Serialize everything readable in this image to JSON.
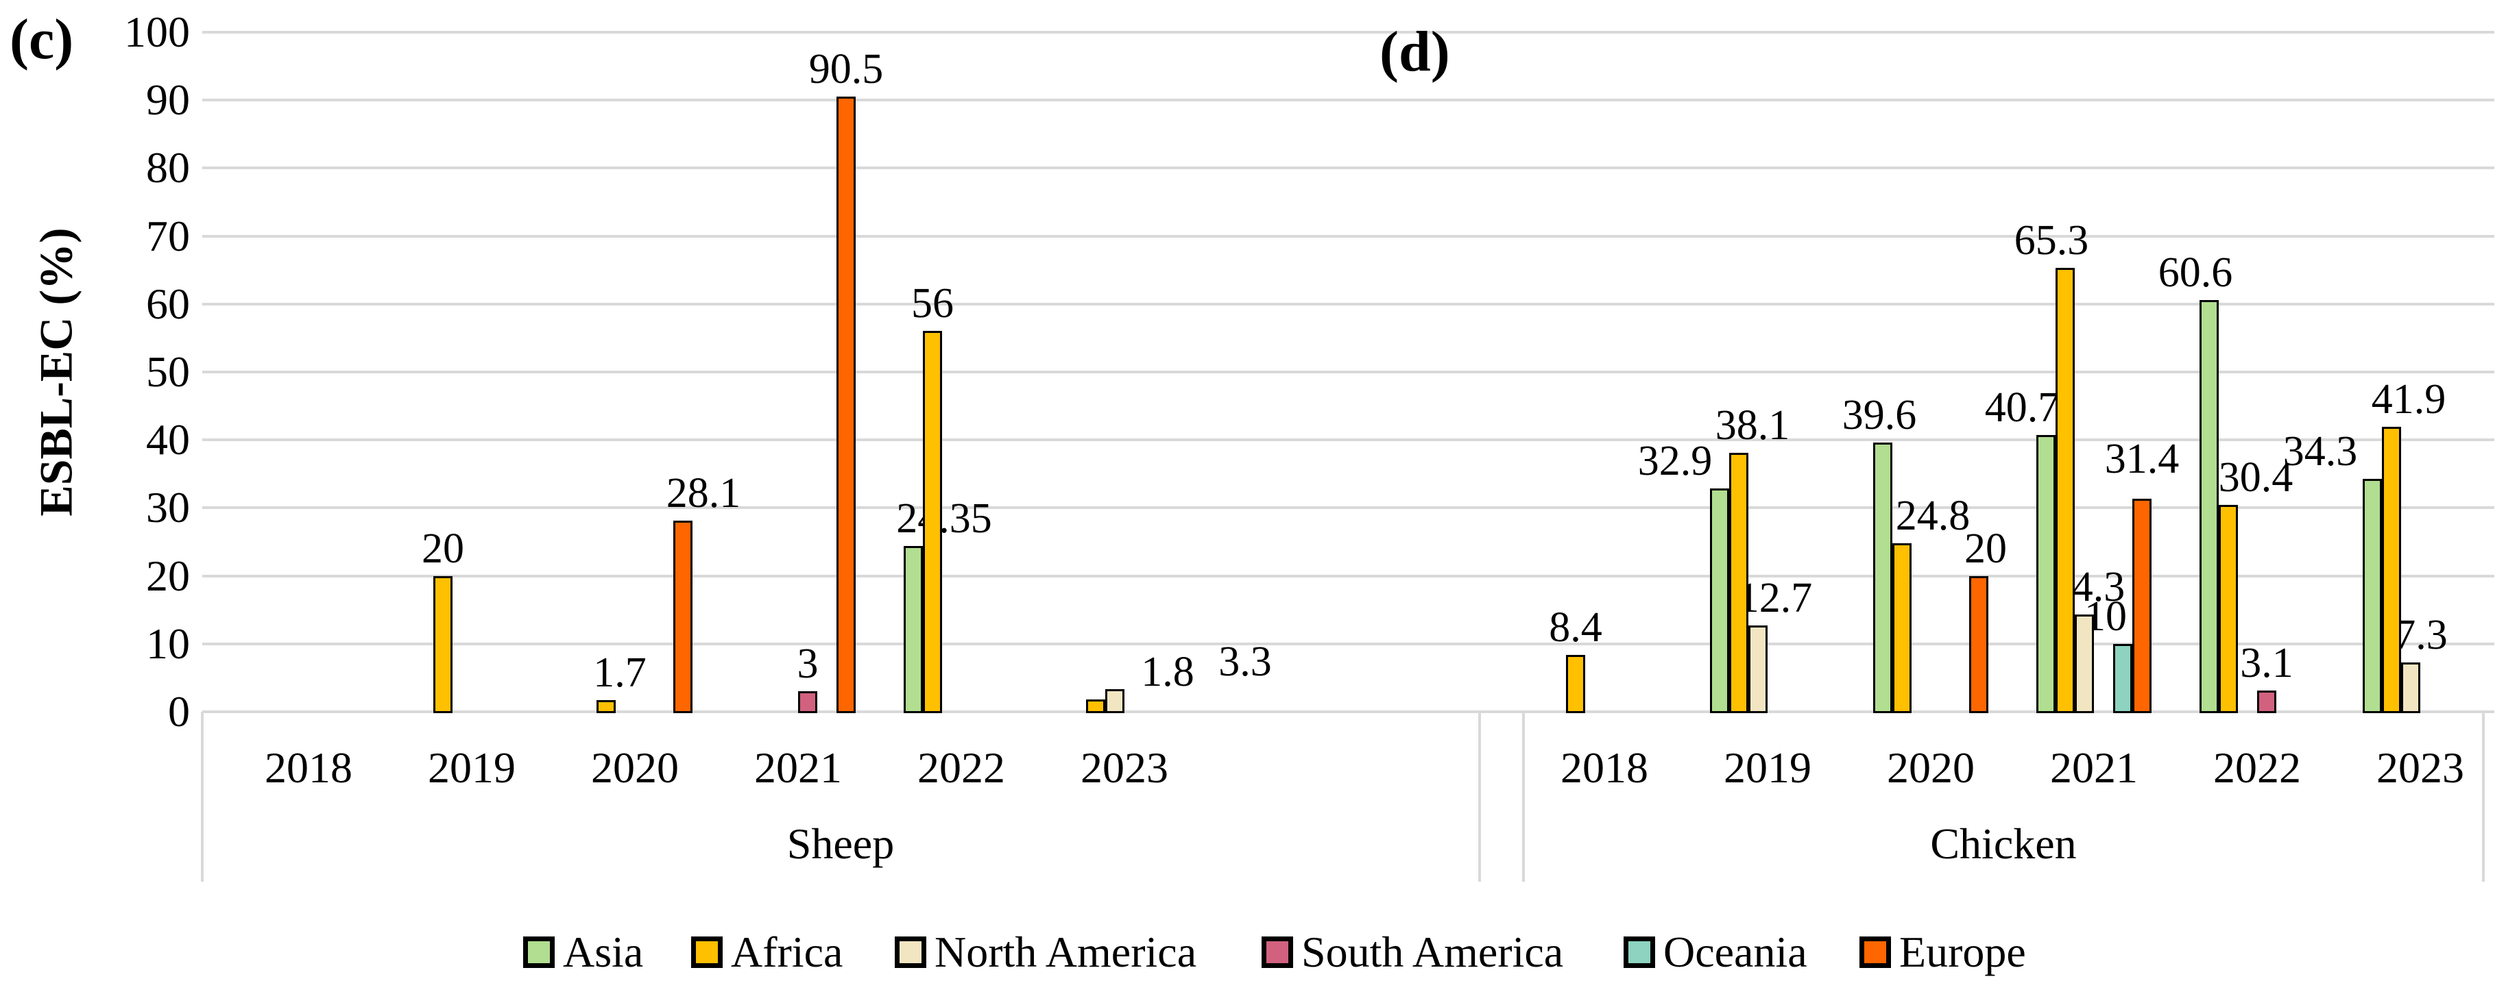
{
  "y_axis": {
    "title": "ESBL-EC (%)",
    "tick_labels": [
      "0",
      "10",
      "20",
      "30",
      "40",
      "50",
      "60",
      "70",
      "80",
      "90",
      "100"
    ],
    "min": 0,
    "max": 100,
    "step": 10
  },
  "legend": {
    "items": [
      {
        "label": "Asia",
        "color": "#B1DE90"
      },
      {
        "label": "Africa",
        "color": "#FFC000"
      },
      {
        "label": "North America",
        "color": "#F2E6C2"
      },
      {
        "label": "South America",
        "color": "#D2617F"
      },
      {
        "label": "Oceania",
        "color": "#8DD3C0"
      },
      {
        "label": "Europe",
        "color": "#FF6600"
      }
    ]
  },
  "styles": {
    "grid_color": "#D9D9D9",
    "bar_outline_color": "#000000",
    "background_color": "#FFFFFF",
    "text_color": "#000000"
  },
  "chart_data": {
    "type": "bar",
    "ylabel": "ESBL-EC (%)",
    "ylim": [
      0,
      100
    ],
    "grid": true,
    "legend_position": "bottom",
    "categories": [
      "2018",
      "2019",
      "2020",
      "2021",
      "2022",
      "2023"
    ],
    "panels": [
      {
        "panel_letter": "(c)",
        "group_label": "Sheep",
        "series": [
          {
            "name": "Asia",
            "values": [
              null,
              null,
              null,
              null,
              24.35,
              null
            ]
          },
          {
            "name": "Africa",
            "values": [
              null,
              20,
              1.7,
              null,
              56,
              1.8
            ]
          },
          {
            "name": "North America",
            "values": [
              null,
              null,
              null,
              null,
              null,
              3.3
            ]
          },
          {
            "name": "South America",
            "values": [
              null,
              null,
              null,
              3,
              null,
              null
            ]
          },
          {
            "name": "Oceania",
            "values": [
              null,
              null,
              null,
              null,
              null,
              null
            ]
          },
          {
            "name": "Europe",
            "values": [
              null,
              null,
              28.1,
              90.5,
              null,
              null
            ]
          }
        ]
      },
      {
        "panel_letter": "(d)",
        "group_label": "Chicken",
        "series": [
          {
            "name": "Asia",
            "values": [
              null,
              32.9,
              39.6,
              40.7,
              60.6,
              34.3
            ]
          },
          {
            "name": "Africa",
            "values": [
              8.4,
              38.1,
              24.8,
              65.3,
              30.4,
              41.9
            ]
          },
          {
            "name": "North America",
            "values": [
              null,
              12.7,
              null,
              14.3,
              null,
              7.3
            ]
          },
          {
            "name": "South America",
            "values": [
              null,
              null,
              null,
              null,
              3.1,
              null
            ]
          },
          {
            "name": "Oceania",
            "values": [
              null,
              null,
              null,
              10,
              null,
              null
            ]
          },
          {
            "name": "Europe",
            "values": [
              null,
              null,
              20,
              31.4,
              null,
              null
            ]
          }
        ]
      }
    ]
  }
}
